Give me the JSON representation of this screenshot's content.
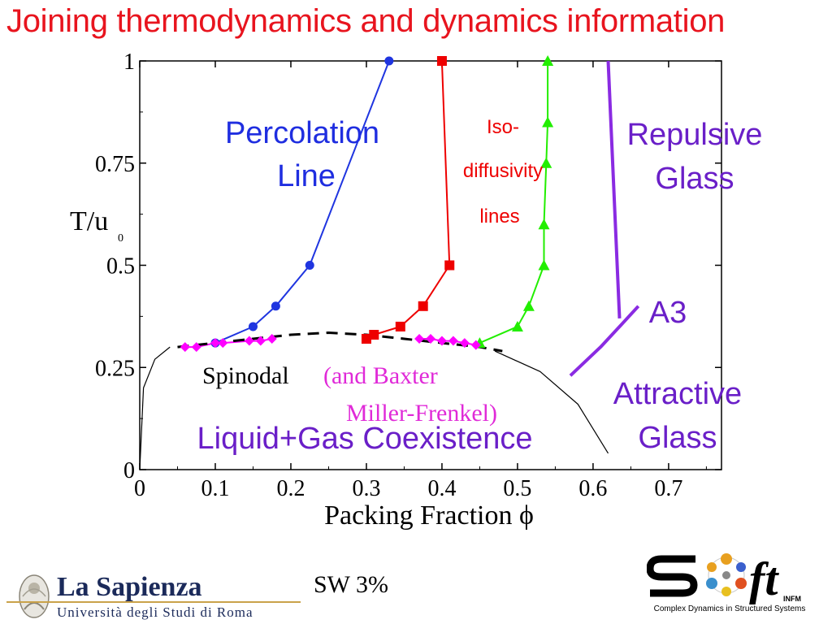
{
  "slide": {
    "title": "Joining thermodynamics and dynamics information",
    "caption": "SW 3%"
  },
  "logos": {
    "sapienza": {
      "name": "La Sapienza",
      "subtitle": "Università degli Studi di Roma"
    },
    "soft": {
      "word": "SOft",
      "badge": "INFM",
      "subtitle": "Complex Dynamics in Structured Systems"
    }
  },
  "colors": {
    "title": "#e8141e",
    "percolation": "#1f35e0",
    "isodiff_red": "#ee0000",
    "isodiff_green": "#22ee00",
    "glass": "#8a2be2",
    "spinodal_points": "#ff00ff",
    "label_blue": "#1f2ee0",
    "label_purple": "#6a1fc8",
    "label_red": "#ee0000",
    "label_magenta": "#e02ad8"
  },
  "chart_data": {
    "type": "line",
    "xlabel": "Packing Fraction ϕ",
    "ylabel": "T/u",
    "ylabel_sub": "0",
    "xlim": [
      0,
      0.77
    ],
    "ylim": [
      0,
      1
    ],
    "xticks": [
      "0",
      "0.1",
      "0.2",
      "0.3",
      "0.4",
      "0.5",
      "0.6",
      "0.7"
    ],
    "xtick_values": [
      0,
      0.1,
      0.2,
      0.3,
      0.4,
      0.5,
      0.6,
      0.7
    ],
    "yticks": [
      "0",
      "0.25",
      "0.5",
      "0.75",
      "1"
    ],
    "ytick_values": [
      0,
      0.25,
      0.5,
      0.75,
      1
    ],
    "series": [
      {
        "key": "percolation",
        "marker": "circle",
        "color": "#1f35e0",
        "x": [
          0.1,
          0.15,
          0.18,
          0.225,
          0.33
        ],
        "y": [
          0.31,
          0.35,
          0.4,
          0.5,
          1.0
        ]
      },
      {
        "key": "isodiff_red",
        "marker": "square",
        "color": "#ee0000",
        "x": [
          0.3,
          0.31,
          0.345,
          0.375,
          0.41,
          0.4
        ],
        "y": [
          0.32,
          0.33,
          0.35,
          0.4,
          0.5,
          1.0
        ]
      },
      {
        "key": "isodiff_green",
        "marker": "triangle",
        "color": "#22ee00",
        "x": [
          0.45,
          0.5,
          0.515,
          0.535,
          0.535,
          0.538,
          0.54,
          0.54
        ],
        "y": [
          0.31,
          0.35,
          0.4,
          0.5,
          0.6,
          0.75,
          0.85,
          1.0
        ]
      },
      {
        "key": "repulsive_glass",
        "marker": "none",
        "color": "#8a2be2",
        "x": [
          0.62,
          0.635
        ],
        "y": [
          1.0,
          0.37
        ]
      },
      {
        "key": "attractive_glass",
        "marker": "none",
        "color": "#8a2be2",
        "x": [
          0.57,
          0.61,
          0.635,
          0.66
        ],
        "y": [
          0.23,
          0.3,
          0.35,
          0.4
        ]
      },
      {
        "key": "spinodal_left_points",
        "marker": "diamond",
        "color": "#ff00ff",
        "x": [
          0.06,
          0.075,
          0.1,
          0.11,
          0.145,
          0.16,
          0.175
        ],
        "y": [
          0.3,
          0.3,
          0.31,
          0.31,
          0.315,
          0.315,
          0.32
        ]
      },
      {
        "key": "spinodal_right_points",
        "marker": "diamond",
        "color": "#ff00ff",
        "x": [
          0.37,
          0.385,
          0.4,
          0.415,
          0.43,
          0.445
        ],
        "y": [
          0.32,
          0.32,
          0.315,
          0.315,
          0.31,
          0.305
        ]
      },
      {
        "key": "spinodal_dashed",
        "marker": "none",
        "color": "#000000",
        "dashed": true,
        "x": [
          0.05,
          0.1,
          0.15,
          0.2,
          0.25,
          0.3,
          0.35,
          0.4,
          0.45,
          0.48
        ],
        "y": [
          0.3,
          0.31,
          0.32,
          0.33,
          0.335,
          0.33,
          0.32,
          0.31,
          0.3,
          0.29
        ]
      },
      {
        "key": "coexistence_thin",
        "marker": "none",
        "color": "#000000",
        "x": [
          0.0,
          0.005,
          0.02,
          0.04
        ],
        "y": [
          0.0,
          0.2,
          0.27,
          0.3
        ]
      },
      {
        "key": "coexistence_thin_right",
        "marker": "none",
        "color": "#000000",
        "x": [
          0.47,
          0.53,
          0.58,
          0.62
        ],
        "y": [
          0.29,
          0.24,
          0.16,
          0.04
        ]
      }
    ],
    "annotations": {
      "percolation_line1": "Percolation",
      "percolation_line2": "Line",
      "isodiff_line1": "Iso-",
      "isodiff_line2": "diffusivity",
      "isodiff_line3": "lines",
      "repulsive_line1": "Repulsive",
      "repulsive_line2": "Glass",
      "a3": "A3",
      "spinodal": "Spinodal",
      "baxter_line1": "(and Baxter",
      "baxter_line2": "Miller-Frenkel)",
      "coexistence": "Liquid+Gas Coexistence",
      "attractive_line1": "Attractive",
      "attractive_line2": "Glass"
    }
  }
}
